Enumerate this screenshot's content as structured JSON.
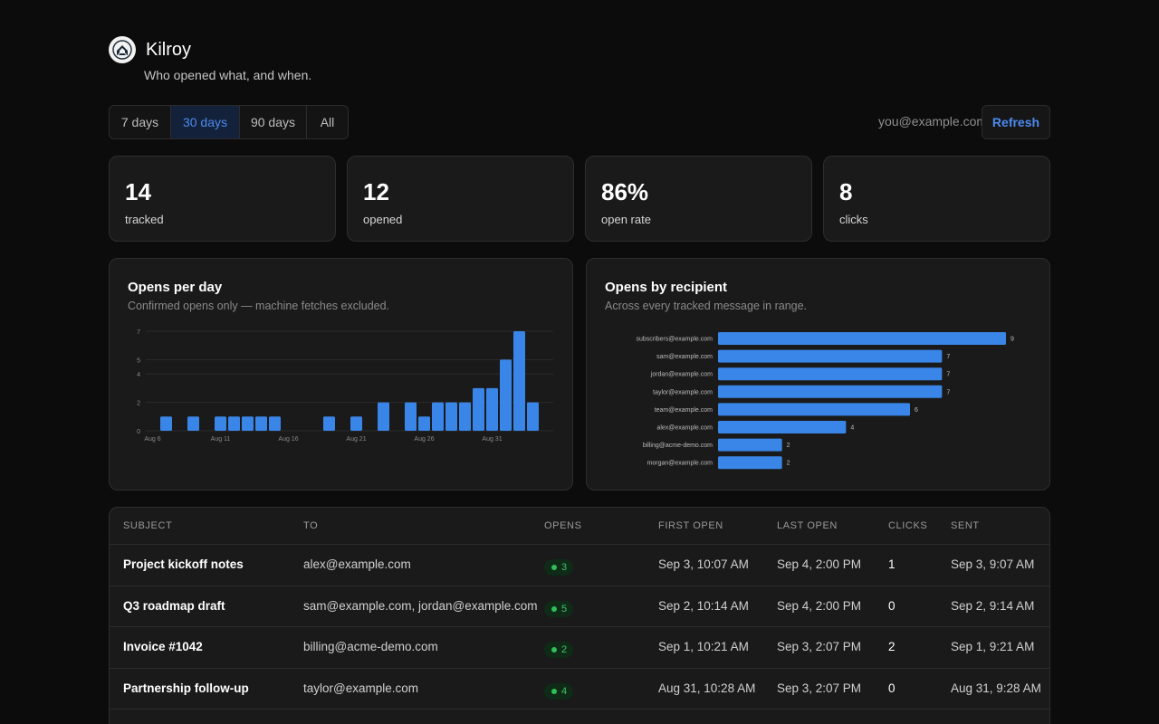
{
  "app": {
    "title": "Kilroy",
    "tagline": "Who opened what, and when.",
    "logo_icon": "kilroy-logo-icon"
  },
  "range": {
    "options": [
      "7 days",
      "30 days",
      "90 days",
      "All"
    ],
    "active": "30 days"
  },
  "account": {
    "email": "you@example.com",
    "refresh_label": "Refresh"
  },
  "stats": [
    {
      "value": "14",
      "label": "tracked"
    },
    {
      "value": "12",
      "label": "opened"
    },
    {
      "value": "86%",
      "label": "open rate"
    },
    {
      "value": "8",
      "label": "clicks"
    }
  ],
  "panels": {
    "opens_per_day": {
      "title": "Opens per day",
      "subtitle": "Confirmed opens only — machine fetches excluded."
    },
    "opens_by_recipient": {
      "title": "Opens by recipient",
      "subtitle": "Across every tracked message in range."
    }
  },
  "chart_data": [
    {
      "type": "bar",
      "title": "Opens per day",
      "x": [
        "Aug 6",
        "Aug 7",
        "Aug 8",
        "Aug 9",
        "Aug 10",
        "Aug 11",
        "Aug 12",
        "Aug 13",
        "Aug 14",
        "Aug 15",
        "Aug 16",
        "Aug 17",
        "Aug 18",
        "Aug 19",
        "Aug 20",
        "Aug 21",
        "Aug 22",
        "Aug 23",
        "Aug 24",
        "Aug 25",
        "Aug 26",
        "Aug 27",
        "Aug 28",
        "Aug 29",
        "Aug 30",
        "Aug 31",
        "Sep 1",
        "Sep 2",
        "Sep 3",
        "Sep 4"
      ],
      "values": [
        0,
        1,
        0,
        1,
        0,
        1,
        1,
        1,
        1,
        1,
        0,
        0,
        0,
        1,
        0,
        1,
        0,
        2,
        0,
        2,
        1,
        2,
        2,
        2,
        3,
        3,
        5,
        7,
        2,
        0
      ],
      "x_tick_labels": [
        "Aug 6",
        "Aug 11",
        "Aug 16",
        "Aug 21",
        "Aug 26",
        "Aug 31"
      ],
      "y_ticks": [
        0,
        2,
        4,
        5,
        7
      ],
      "ylim": [
        0,
        7
      ],
      "grid": true,
      "color": "#3a86e8"
    },
    {
      "type": "bar",
      "orientation": "horizontal",
      "title": "Opens by recipient",
      "categories": [
        "subscribers@example.com",
        "sam@example.com",
        "jordan@example.com",
        "taylor@example.com",
        "team@example.com",
        "alex@example.com",
        "billing@acme-demo.com",
        "morgan@example.com"
      ],
      "values": [
        9,
        7,
        7,
        7,
        6,
        4,
        2,
        2
      ],
      "xlim": [
        0,
        9
      ],
      "color": "#3a86e8"
    }
  ],
  "table": {
    "columns": [
      "SUBJECT",
      "TO",
      "OPENS",
      "FIRST OPEN",
      "LAST OPEN",
      "CLICKS",
      "SENT"
    ],
    "rows": [
      {
        "subject": "Project kickoff notes",
        "to": "alex@example.com",
        "opens": "3",
        "first_open": "Sep 3, 10:07 AM",
        "last_open": "Sep 4, 2:00 PM",
        "clicks": "1",
        "sent": "Sep 3, 9:07 AM"
      },
      {
        "subject": "Q3 roadmap draft",
        "to": "sam@example.com, jordan@example.com",
        "opens": "5",
        "first_open": "Sep 2, 10:14 AM",
        "last_open": "Sep 4, 2:00 PM",
        "clicks": "0",
        "sent": "Sep 2, 9:14 AM"
      },
      {
        "subject": "Invoice #1042",
        "to": "billing@acme-demo.com",
        "opens": "2",
        "first_open": "Sep 1, 10:21 AM",
        "last_open": "Sep 3, 2:07 PM",
        "clicks": "2",
        "sent": "Sep 1, 9:21 AM"
      },
      {
        "subject": "Partnership follow-up",
        "to": "taylor@example.com",
        "opens": "4",
        "first_open": "Aug 31, 10:28 AM",
        "last_open": "Sep 3, 2:07 PM",
        "clicks": "0",
        "sent": "Aug 31, 9:28 AM"
      }
    ]
  },
  "colors": {
    "accent": "#4b8bf0",
    "bar": "#3a86e8",
    "badge_green": "#2fbf58",
    "background": "#0c0c0c",
    "card": "#1a1a1a"
  }
}
